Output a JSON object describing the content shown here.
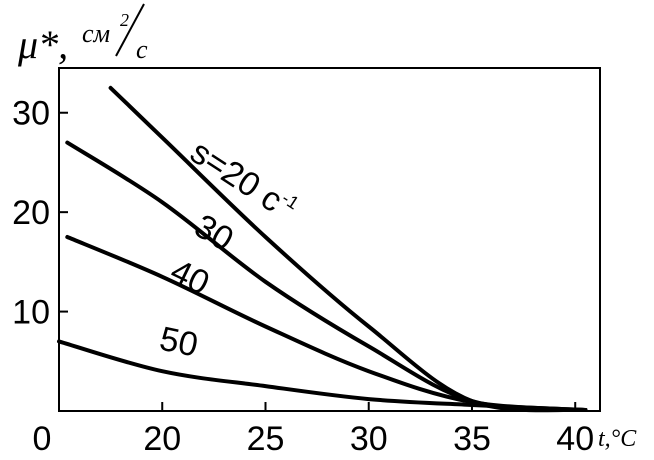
{
  "chart_data": {
    "type": "line",
    "ylabel": "μ*, см²/с",
    "ylabel_parts": {
      "symbol": "μ*,",
      "unit_top": "см",
      "unit_exp": "2",
      "unit_bottom": "с"
    },
    "xlabel": "t,°C",
    "x_ticks": [
      "0",
      "20",
      "25",
      "30",
      "35",
      "40"
    ],
    "x_tick_values": [
      15,
      20,
      25,
      30,
      35,
      40
    ],
    "y_ticks": [
      "10",
      "20",
      "30"
    ],
    "y_tick_values": [
      10,
      20,
      30
    ],
    "xlim": [
      15,
      41.2
    ],
    "ylim": [
      0,
      34.5
    ],
    "grid": false,
    "series": [
      {
        "name": "s=20 с⁻¹",
        "label_parts": {
          "base": "s=20 c",
          "sup": "-1"
        },
        "x": [
          17.5,
          20,
          25,
          30,
          35,
          40.5
        ],
        "y": [
          32.5,
          27.5,
          17.5,
          8.5,
          1.0,
          0.1
        ]
      },
      {
        "name": "30",
        "x": [
          15.4,
          20,
          25,
          30,
          35,
          40.5
        ],
        "y": [
          27.0,
          21.0,
          13.0,
          6.5,
          1.0,
          0.1
        ]
      },
      {
        "name": "40",
        "x": [
          15.4,
          20,
          25,
          30,
          35,
          40.5
        ],
        "y": [
          17.5,
          13.5,
          8.5,
          4.0,
          0.9,
          0.1
        ]
      },
      {
        "name": "50",
        "x": [
          15.0,
          20,
          25,
          30,
          35,
          40.5
        ],
        "y": [
          7.0,
          4.0,
          2.5,
          1.2,
          0.6,
          0.1
        ]
      }
    ]
  }
}
